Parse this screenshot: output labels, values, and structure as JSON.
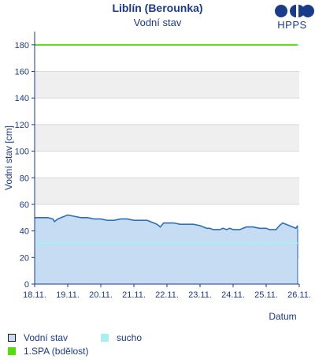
{
  "header": {
    "title": "Liblín (Berounka)",
    "subtitle": "Vodní stav",
    "logo_text": "HPPS"
  },
  "colors": {
    "axis_text": "#1a3a8c",
    "area_fill": "#c6dcf2",
    "area_line": "#2f6fb5",
    "drought": "#a8f0f0",
    "spa1": "#55dd11",
    "band": "#efefef"
  },
  "chart_data": {
    "type": "area",
    "title": "Liblín (Berounka)",
    "subtitle": "Vodní stav",
    "xlabel": "Datum",
    "ylabel": "Vodní stav [cm]",
    "ylim": [
      0,
      190
    ],
    "yticks": [
      0,
      20,
      40,
      60,
      80,
      100,
      120,
      140,
      160,
      180
    ],
    "xlim": [
      18.0,
      26.0
    ],
    "xticks": [
      {
        "value": 18,
        "label": "18.11."
      },
      {
        "value": 19,
        "label": "19.11."
      },
      {
        "value": 20,
        "label": "20.11."
      },
      {
        "value": 21,
        "label": "21.11."
      },
      {
        "value": 22,
        "label": "22.11."
      },
      {
        "value": 23,
        "label": "23.11."
      },
      {
        "value": 24,
        "label": "24.11."
      },
      {
        "value": 25,
        "label": "25.11."
      },
      {
        "value": 26,
        "label": "26.11."
      }
    ],
    "grid_bands": true,
    "series": [
      {
        "name": "Vodní stav",
        "type": "area",
        "x": [
          18.0,
          18.25,
          18.4,
          18.55,
          18.6,
          18.7,
          18.8,
          18.9,
          19.0,
          19.2,
          19.4,
          19.6,
          19.8,
          20.0,
          20.2,
          20.4,
          20.6,
          20.8,
          21.0,
          21.2,
          21.4,
          21.5,
          21.6,
          21.7,
          21.8,
          21.9,
          22.0,
          22.2,
          22.4,
          22.6,
          22.8,
          23.0,
          23.1,
          23.2,
          23.3,
          23.4,
          23.5,
          23.6,
          23.7,
          23.8,
          23.9,
          24.0,
          24.2,
          24.4,
          24.6,
          24.8,
          25.0,
          25.1,
          25.2,
          25.3,
          25.4,
          25.5,
          25.6,
          25.7,
          25.8,
          25.9,
          25.95
        ],
        "values": [
          50,
          50,
          50,
          49,
          47,
          49,
          50,
          51,
          52,
          51,
          50,
          50,
          49,
          49,
          48,
          48,
          49,
          49,
          48,
          48,
          48,
          47,
          46,
          45,
          43,
          46,
          46,
          46,
          45,
          45,
          45,
          44,
          43,
          42,
          42,
          41,
          41,
          41,
          42,
          41,
          42,
          41,
          41,
          43,
          43,
          42,
          42,
          41,
          41,
          41,
          44,
          46,
          45,
          44,
          43,
          42,
          44
        ]
      },
      {
        "name": "sucho",
        "type": "threshold",
        "value": 31
      },
      {
        "name": "1.SPA (bdělost)",
        "type": "threshold",
        "value": 180
      }
    ]
  }
}
